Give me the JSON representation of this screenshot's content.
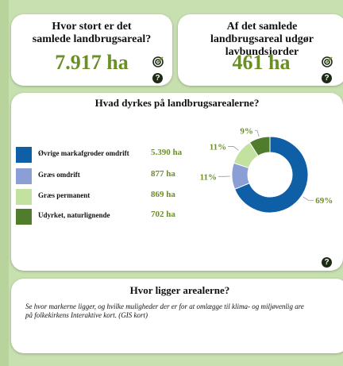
{
  "kpi1": {
    "title": "Hvor stort er det samlede landbrugsareal?",
    "value": "7.917 ha"
  },
  "kpi2": {
    "title": "Af det samlede landbrugsareal udgør lavbundsjorder",
    "value": "461 ha"
  },
  "icons": {
    "target": "target-icon",
    "help": "help-icon",
    "help_glyph": "?"
  },
  "crops": {
    "title": "Hvad dyrkes på landbrugsarealerne?",
    "legend": [
      {
        "label": "Øvrige markafgroder omdrift",
        "value": "5.390 ha",
        "color": "#0f5fa6"
      },
      {
        "label": "Græs omdrift",
        "value": "877 ha",
        "color": "#8c9ed6"
      },
      {
        "label": "Græs permanent",
        "value": "869 ha",
        "color": "#c3e2a0"
      },
      {
        "label": "Udyrket, naturlignende",
        "value": "702 ha",
        "color": "#4f7d2b"
      }
    ]
  },
  "location": {
    "title": "Hvor ligger arealerne?",
    "line1": "Se hvor markerne ligger, og hvilke muligheder der er for at omlægge til klima- og miljøvenlig are",
    "line2": "på folkekirkens Interaktive kort. (GIS kort)"
  },
  "colors": {
    "accent": "#6b8f26",
    "background": "#c8e0b0"
  },
  "chart_data": {
    "type": "pie",
    "title": "Hvad dyrkes på landbrugsarealerne?",
    "categories": [
      "Øvrige markafgroder omdrift",
      "Græs omdrift",
      "Græs permanent",
      "Udyrket, naturlignende"
    ],
    "values": [
      5390,
      877,
      869,
      702
    ],
    "labels": [
      "69%",
      "11%",
      "11%",
      "9%"
    ],
    "colors": [
      "#0f5fa6",
      "#8c9ed6",
      "#c3e2a0",
      "#4f7d2b"
    ],
    "legend": "left"
  }
}
